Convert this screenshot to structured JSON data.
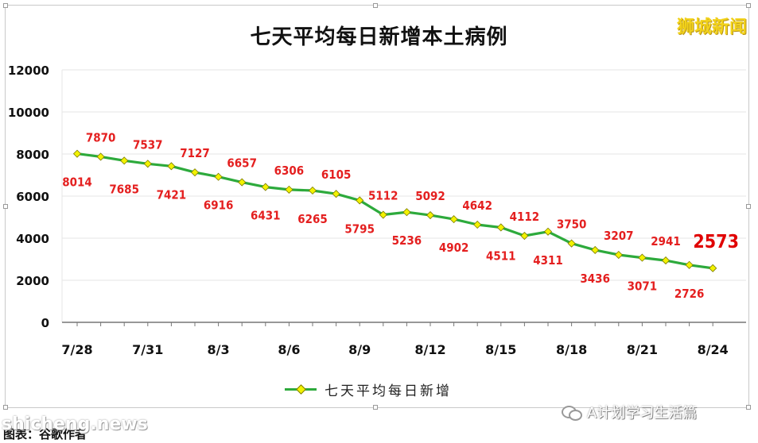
{
  "brand": "狮城新闻",
  "legend_label": "七天平均每日新增",
  "watermark_left": "shicheng.news",
  "caption": "图表：谷歌作者",
  "watermark_right": "A计划学习生活篇",
  "colors": {
    "line": "#2daa3c",
    "marker_fill": "#f2f200",
    "marker_stroke": "#7a7a00",
    "data_label": "#e41f1f",
    "grid": "#e6e6e6"
  },
  "chart_data": {
    "type": "line",
    "title": "七天平均每日新增本土病例",
    "xlabel": "",
    "ylabel": "",
    "ylim": [
      0,
      12000
    ],
    "yticks": [
      0,
      2000,
      4000,
      6000,
      8000,
      10000,
      12000
    ],
    "grid": true,
    "legend": "bottom",
    "x": [
      "7/28",
      "7/29",
      "7/30",
      "7/31",
      "8/1",
      "8/2",
      "8/3",
      "8/4",
      "8/5",
      "8/6",
      "8/7",
      "8/8",
      "8/9",
      "8/10",
      "8/11",
      "8/12",
      "8/13",
      "8/14",
      "8/15",
      "8/16",
      "8/17",
      "8/18",
      "8/19",
      "8/20",
      "8/21",
      "8/22",
      "8/23",
      "8/24"
    ],
    "x_tick_labels": [
      "7/28",
      "7/31",
      "8/3",
      "8/6",
      "8/9",
      "8/12",
      "8/15",
      "8/18",
      "8/21",
      "8/24"
    ],
    "series": [
      {
        "name": "七天平均每日新增",
        "values": [
          8014,
          7870,
          7685,
          7537,
          7421,
          7127,
          6916,
          6657,
          6431,
          6306,
          6265,
          6105,
          5795,
          5112,
          5236,
          5092,
          4902,
          4642,
          4511,
          4112,
          4311,
          3750,
          3436,
          3207,
          3071,
          2941,
          2726,
          2573
        ]
      }
    ],
    "highlight": {
      "label": "2573"
    }
  }
}
